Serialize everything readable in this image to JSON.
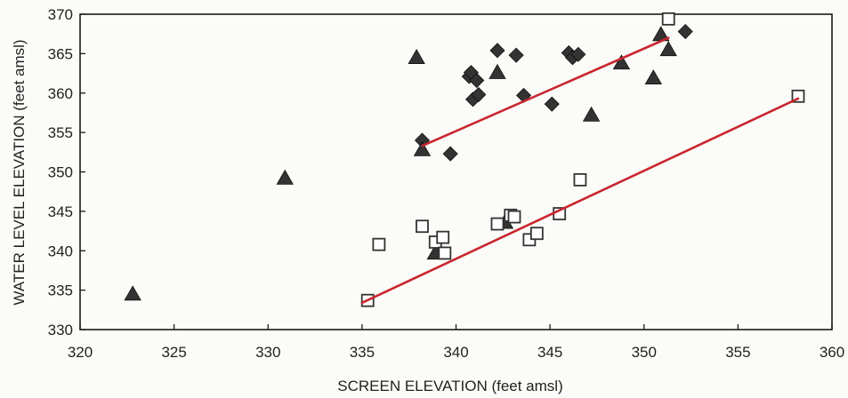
{
  "chart_data": {
    "type": "scatter",
    "xlabel": "SCREEN ELEVATION (feet amsl)",
    "ylabel": "WATER LEVEL ELEVATION (feet amsl)",
    "xlim": [
      320,
      360
    ],
    "ylim": [
      330,
      370
    ],
    "x_ticks": [
      "320",
      "325",
      "330",
      "335",
      "340",
      "345",
      "350",
      "355",
      "360"
    ],
    "y_ticks": [
      "330",
      "335",
      "340",
      "345",
      "350",
      "355",
      "360",
      "365",
      "370"
    ],
    "grid": false,
    "legend": "none",
    "series": [
      {
        "marker": "diamond",
        "color": "#333333",
        "points": [
          [
            338.2,
            354.0
          ],
          [
            339.7,
            352.3
          ],
          [
            340.7,
            362.1
          ],
          [
            340.8,
            362.6
          ],
          [
            340.9,
            359.2
          ],
          [
            341.1,
            361.6
          ],
          [
            341.2,
            359.8
          ],
          [
            342.2,
            365.4
          ],
          [
            343.2,
            364.8
          ],
          [
            343.6,
            359.7
          ],
          [
            345.1,
            358.6
          ],
          [
            346.0,
            365.1
          ],
          [
            346.2,
            364.5
          ],
          [
            346.5,
            364.9
          ],
          [
            352.2,
            367.8
          ]
        ]
      },
      {
        "marker": "triangle",
        "color": "#333333",
        "points": [
          [
            322.8,
            334.5
          ],
          [
            330.9,
            349.2
          ],
          [
            337.9,
            364.5
          ],
          [
            338.2,
            352.8
          ],
          [
            338.9,
            339.7
          ],
          [
            342.2,
            362.6
          ],
          [
            342.6,
            343.6
          ],
          [
            347.2,
            357.2
          ],
          [
            348.8,
            363.8
          ],
          [
            350.5,
            361.9
          ],
          [
            350.9,
            367.4
          ],
          [
            351.3,
            365.5
          ]
        ]
      },
      {
        "marker": "open-square",
        "color": "#333333",
        "points": [
          [
            335.3,
            333.7
          ],
          [
            335.9,
            340.8
          ],
          [
            338.2,
            343.1
          ],
          [
            338.9,
            341.1
          ],
          [
            339.3,
            341.7
          ],
          [
            339.4,
            339.7
          ],
          [
            342.2,
            343.4
          ],
          [
            342.9,
            344.5
          ],
          [
            343.1,
            344.3
          ],
          [
            343.9,
            341.4
          ],
          [
            344.3,
            342.2
          ],
          [
            345.5,
            344.7
          ],
          [
            346.6,
            349.0
          ],
          [
            351.3,
            369.4
          ],
          [
            358.2,
            359.6
          ]
        ]
      }
    ],
    "trend_lines": [
      {
        "color": "#c8262e",
        "from": [
          338.2,
          353.3
        ],
        "to": [
          351.3,
          367.0
        ]
      },
      {
        "color": "#c8262e",
        "from": [
          335.0,
          333.4
        ],
        "to": [
          358.2,
          359.3
        ]
      }
    ]
  }
}
